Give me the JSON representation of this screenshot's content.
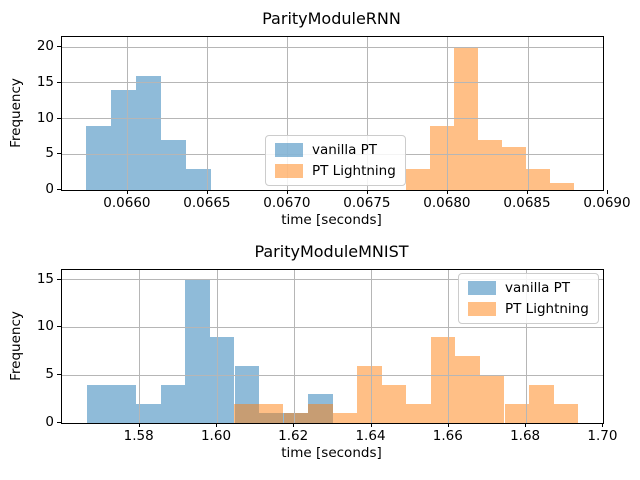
{
  "figure_title": "",
  "legend_labels": [
    "vanilla PT",
    "PT Lightning"
  ],
  "colors": {
    "vanilla_pt": "#1f77b4",
    "pt_lightning": "#ff7f0e",
    "grid": "#b6b6b6",
    "spine": "#000000"
  },
  "chart_data": [
    {
      "type": "bar",
      "subtype": "histogram",
      "title": "ParityModuleRNN",
      "xlabel": "time [seconds]",
      "ylabel": "Frequency",
      "xlim": [
        0.065588,
        0.068969
      ],
      "ylim": [
        0,
        21.4
      ],
      "xticks": [
        0.066,
        0.0665,
        0.067,
        0.0675,
        0.068,
        0.0685,
        0.069
      ],
      "xtick_labels": [
        "0.0660",
        "0.0665",
        "0.0670",
        "0.0675",
        "0.0680",
        "0.0685",
        "0.0690"
      ],
      "yticks": [
        0,
        5,
        10,
        15,
        20
      ],
      "ytick_labels": [
        "0",
        "5",
        "10",
        "15",
        "20"
      ],
      "grid": true,
      "grid_above_bars": true,
      "legend": {
        "position": "center",
        "entries": [
          "vanilla PT",
          "PT Lightning"
        ]
      },
      "series": [
        {
          "name": "vanilla PT",
          "color": "#1f77b4",
          "alpha": 0.5,
          "bin_start": 0.065737,
          "bin_width": 0.000156,
          "counts": [
            9,
            14,
            16,
            7,
            3
          ]
        },
        {
          "name": "PT Lightning",
          "color": "#ff7f0e",
          "alpha": 0.5,
          "bin_start": 0.067738,
          "bin_width": 0.00015,
          "counts": [
            3,
            9,
            20,
            7,
            6,
            3,
            1
          ]
        }
      ]
    },
    {
      "type": "bar",
      "subtype": "histogram",
      "title": "ParityModuleMNIST",
      "xlabel": "time [seconds]",
      "ylabel": "Frequency",
      "xlim": [
        1.5599,
        1.6999
      ],
      "ylim": [
        0,
        16
      ],
      "xticks": [
        1.58,
        1.6,
        1.62,
        1.64,
        1.66,
        1.68,
        1.7
      ],
      "xtick_labels": [
        "1.58",
        "1.60",
        "1.62",
        "1.64",
        "1.66",
        "1.68",
        "1.70"
      ],
      "yticks": [
        0,
        5,
        10,
        15
      ],
      "ytick_labels": [
        "0",
        "5",
        "10",
        "15"
      ],
      "grid": true,
      "grid_above_bars": true,
      "legend": {
        "position": "upper right",
        "entries": [
          "vanilla PT",
          "PT Lightning"
        ]
      },
      "series": [
        {
          "name": "vanilla PT",
          "color": "#1f77b4",
          "alpha": 0.5,
          "bin_start": 1.5664,
          "bin_width": 0.006355,
          "counts": [
            4,
            4,
            2,
            4,
            15,
            9,
            6,
            1,
            1,
            3
          ]
        },
        {
          "name": "PT Lightning",
          "color": "#ff7f0e",
          "alpha": 0.5,
          "bin_start": 1.6045,
          "bin_width": 0.006355,
          "counts": [
            2,
            2,
            1,
            2,
            1,
            6,
            4,
            2,
            9,
            7,
            5,
            2,
            4,
            2
          ]
        }
      ]
    }
  ]
}
